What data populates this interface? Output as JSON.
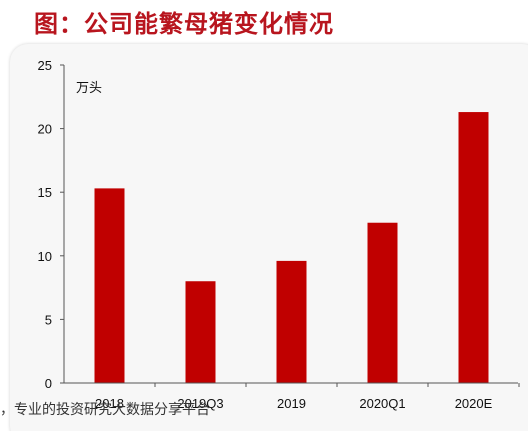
{
  "title": "图：公司能繁母猪变化情况",
  "watermark": "，专业的投资研究大数据分享平台",
  "chart_data": {
    "type": "bar",
    "categories": [
      "2018",
      "2019Q3",
      "2019",
      "2020Q1",
      "2020E"
    ],
    "series": [
      {
        "values": [
          15.3,
          8.0,
          9.6,
          12.6,
          21.3
        ]
      }
    ],
    "unit_label": "万头",
    "ylim": [
      0,
      25
    ],
    "yticks": [
      0,
      5,
      10,
      15,
      20,
      25
    ],
    "bar_color": "#c00000",
    "grid": false,
    "legend": "none"
  }
}
